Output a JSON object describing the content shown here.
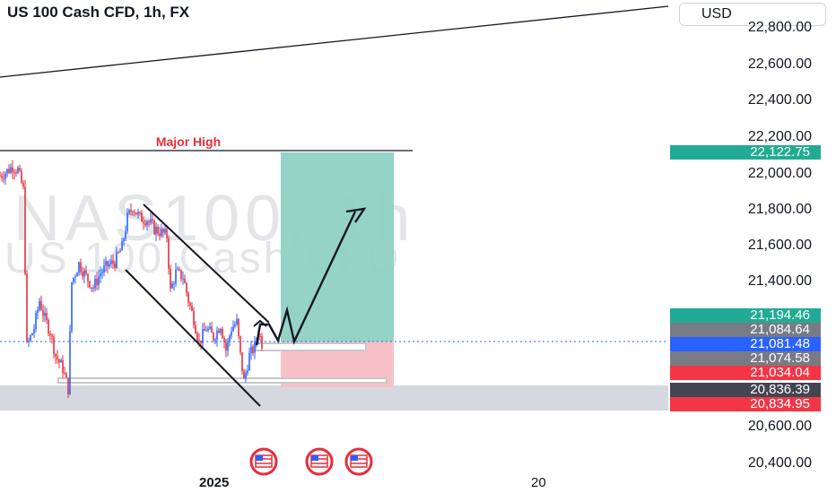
{
  "header": {
    "title": "US 100 Cash CFD, 1h, FX",
    "currency": "USD"
  },
  "watermark": {
    "line1": "NAS100, 1h",
    "line2": "US 100 Cash CFD"
  },
  "annotations": {
    "major_high": "Major High"
  },
  "price_labels": [
    {
      "value": "22,122.75",
      "color": "#22ab94"
    },
    {
      "value": "21,194.46",
      "color": "#22ab94"
    },
    {
      "value": "21,084.64",
      "color": "#787b86"
    },
    {
      "value": "21,081.48",
      "color": "#2962ff"
    },
    {
      "value": "21,074.58",
      "color": "#787b86"
    },
    {
      "value": "21,034.04",
      "color": "#f23645"
    },
    {
      "value": "20,836.39",
      "color": "#434651"
    },
    {
      "value": "20,834.95",
      "color": "#f23645"
    }
  ],
  "chart_data": {
    "type": "candlestick",
    "symbol": "NAS100",
    "interval": "1h",
    "y_ticks": [
      22800,
      22600,
      22400,
      22200,
      22000,
      21800,
      21600,
      21400,
      21200,
      21000,
      20800,
      20600,
      20400
    ],
    "y_tick_labels": [
      "22,800.00",
      "22,600.00",
      "22,400.00",
      "22,200.00",
      "22,000.00",
      "21,800.00",
      "21,600.00",
      "21,400.00",
      "21,200.00",
      "21,000.00",
      "20,800.00",
      "20,600.00",
      "20,400.00"
    ],
    "ylim": [
      20330,
      23000
    ],
    "x_labels": [
      "2025",
      "20"
    ],
    "path": [
      [
        0,
        22030
      ],
      [
        7,
        22050
      ],
      [
        14,
        22080
      ],
      [
        20,
        22060
      ],
      [
        26,
        21950
      ],
      [
        30,
        21100
      ],
      [
        38,
        21200
      ],
      [
        44,
        21350
      ],
      [
        50,
        21250
      ],
      [
        56,
        21180
      ],
      [
        62,
        21050
      ],
      [
        70,
        20980
      ],
      [
        76,
        20870
      ],
      [
        80,
        21450
      ],
      [
        88,
        21550
      ],
      [
        96,
        21480
      ],
      [
        104,
        21420
      ],
      [
        112,
        21500
      ],
      [
        120,
        21540
      ],
      [
        128,
        21560
      ],
      [
        136,
        21640
      ],
      [
        142,
        21800
      ],
      [
        148,
        21860
      ],
      [
        156,
        21800
      ],
      [
        164,
        21790
      ],
      [
        172,
        21740
      ],
      [
        180,
        21720
      ],
      [
        186,
        21700
      ],
      [
        190,
        21400
      ],
      [
        196,
        21500
      ],
      [
        204,
        21480
      ],
      [
        210,
        21350
      ],
      [
        216,
        21250
      ],
      [
        222,
        21120
      ],
      [
        230,
        21200
      ],
      [
        238,
        21150
      ],
      [
        246,
        21220
      ],
      [
        252,
        21080
      ],
      [
        258,
        21200
      ],
      [
        264,
        21230
      ],
      [
        268,
        21050
      ],
      [
        272,
        20910
      ],
      [
        278,
        21050
      ],
      [
        284,
        21100
      ],
      [
        288,
        21180
      ],
      [
        292,
        21120
      ]
    ],
    "major_high": {
      "label": "Major High",
      "price": 22122.75
    },
    "position": {
      "entry": 21084.64,
      "target": 22122.75,
      "stop": 20834.95
    },
    "support_zone": [
      20745,
      20836.39
    ],
    "current_price": 21081.48
  }
}
